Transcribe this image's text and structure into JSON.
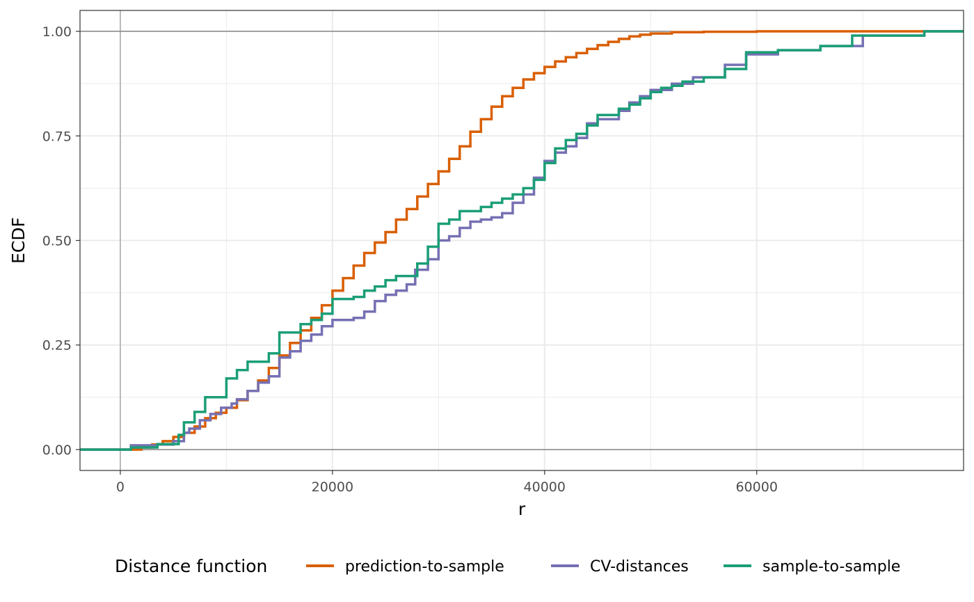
{
  "chart_data": {
    "type": "line",
    "step": true,
    "xlabel": "r",
    "ylabel": "ECDF",
    "xlim": [
      -3800,
      79500
    ],
    "ylim": [
      -0.05,
      1.05
    ],
    "x_ticks": [
      0,
      20000,
      40000,
      60000
    ],
    "x_tick_labels": [
      "0",
      "20000",
      "40000",
      "60000"
    ],
    "y_ticks": [
      0,
      0.25,
      0.5,
      0.75,
      1.0
    ],
    "y_tick_labels": [
      "0.00",
      "0.25",
      "0.50",
      "0.75",
      "1.00"
    ],
    "reference_lines": {
      "h": [
        0,
        1
      ],
      "v": [
        0
      ]
    },
    "grid": true,
    "legend": {
      "position": "bottom",
      "title": "Distance function"
    },
    "series": [
      {
        "name": "prediction-to-sample",
        "color": "#D95F02",
        "x": [
          -3800,
          1000,
          2000,
          3000,
          4000,
          5000,
          6000,
          7000,
          8000,
          9000,
          10000,
          11000,
          12000,
          13000,
          14000,
          15000,
          16000,
          17000,
          18000,
          19000,
          20000,
          21000,
          22000,
          23000,
          24000,
          25000,
          26000,
          27000,
          28000,
          29000,
          30000,
          31000,
          32000,
          33000,
          34000,
          35000,
          36000,
          37000,
          38000,
          39000,
          40000,
          41000,
          42000,
          43000,
          44000,
          45000,
          46000,
          47000,
          48000,
          49000,
          50000,
          52000,
          55000,
          60000,
          65000,
          70000,
          75800
        ],
        "y": [
          0.0,
          0.0,
          0.005,
          0.012,
          0.02,
          0.03,
          0.04,
          0.055,
          0.075,
          0.088,
          0.1,
          0.118,
          0.14,
          0.165,
          0.195,
          0.225,
          0.255,
          0.285,
          0.315,
          0.345,
          0.38,
          0.41,
          0.44,
          0.47,
          0.495,
          0.52,
          0.55,
          0.575,
          0.605,
          0.635,
          0.665,
          0.695,
          0.725,
          0.76,
          0.79,
          0.82,
          0.845,
          0.865,
          0.885,
          0.9,
          0.915,
          0.928,
          0.938,
          0.948,
          0.958,
          0.967,
          0.975,
          0.982,
          0.988,
          0.992,
          0.995,
          0.998,
          0.999,
          1.0,
          1.0,
          1.0,
          1.0
        ]
      },
      {
        "name": "CV-distances",
        "color": "#7570B3",
        "x": [
          -3800,
          0,
          1000,
          3500,
          5000,
          6000,
          6500,
          7500,
          8500,
          9500,
          10500,
          11000,
          12000,
          13000,
          14000,
          15000,
          16000,
          17000,
          18000,
          19000,
          20000,
          22000,
          23000,
          24000,
          25000,
          26000,
          27000,
          27800,
          29000,
          30000,
          31000,
          32000,
          33000,
          34000,
          35000,
          36000,
          37000,
          38000,
          39000,
          40000,
          41000,
          42000,
          43000,
          44000,
          45000,
          47000,
          48000,
          49000,
          50000,
          52000,
          54000,
          57000,
          59000,
          62000,
          66000,
          70000,
          75800
        ],
        "y": [
          0.0,
          0.0,
          0.01,
          0.012,
          0.02,
          0.04,
          0.05,
          0.07,
          0.085,
          0.1,
          0.11,
          0.12,
          0.14,
          0.16,
          0.175,
          0.22,
          0.235,
          0.26,
          0.275,
          0.295,
          0.31,
          0.315,
          0.33,
          0.355,
          0.37,
          0.38,
          0.395,
          0.43,
          0.455,
          0.5,
          0.51,
          0.53,
          0.545,
          0.55,
          0.555,
          0.565,
          0.59,
          0.61,
          0.65,
          0.69,
          0.71,
          0.725,
          0.745,
          0.78,
          0.79,
          0.81,
          0.83,
          0.845,
          0.86,
          0.875,
          0.89,
          0.92,
          0.945,
          0.955,
          0.965,
          0.99,
          1.0
        ]
      },
      {
        "name": "sample-to-sample",
        "color": "#1B9E77",
        "x": [
          -3800,
          0,
          1000,
          3500,
          5500,
          6000,
          7000,
          8000,
          10000,
          11000,
          12000,
          14000,
          15000,
          17000,
          18000,
          19000,
          20000,
          22000,
          23000,
          24000,
          25000,
          26000,
          28000,
          29000,
          30000,
          31000,
          32000,
          34000,
          35000,
          36000,
          37000,
          38000,
          39000,
          40000,
          41000,
          42000,
          43000,
          44000,
          45000,
          47000,
          48000,
          49000,
          50000,
          51000,
          52000,
          53000,
          55000,
          57000,
          59000,
          62000,
          66000,
          69000,
          75800
        ],
        "y": [
          0.0,
          0.0,
          0.005,
          0.013,
          0.035,
          0.065,
          0.09,
          0.125,
          0.17,
          0.19,
          0.21,
          0.23,
          0.28,
          0.3,
          0.31,
          0.325,
          0.36,
          0.365,
          0.38,
          0.39,
          0.405,
          0.415,
          0.445,
          0.485,
          0.54,
          0.55,
          0.57,
          0.58,
          0.59,
          0.6,
          0.61,
          0.625,
          0.645,
          0.685,
          0.72,
          0.74,
          0.755,
          0.775,
          0.8,
          0.815,
          0.825,
          0.84,
          0.855,
          0.865,
          0.87,
          0.88,
          0.89,
          0.91,
          0.95,
          0.955,
          0.965,
          0.99,
          1.0
        ]
      }
    ]
  }
}
